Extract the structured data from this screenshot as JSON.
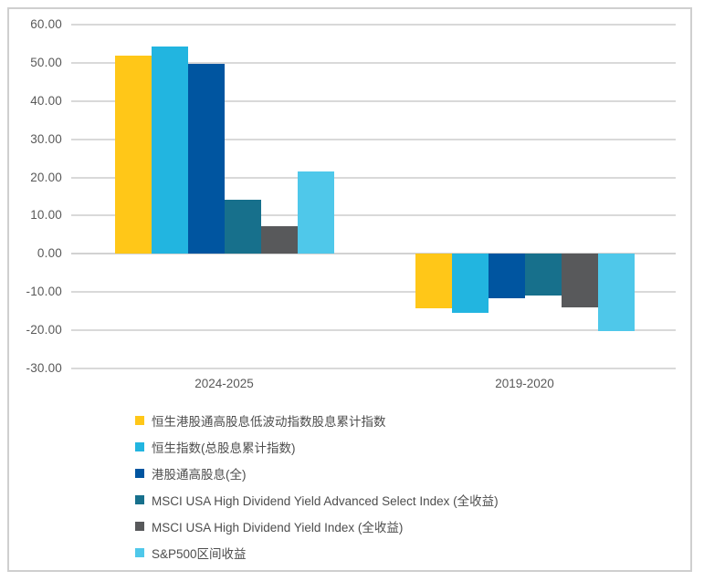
{
  "colors": {
    "grid": "#d9d9d9",
    "frame_border": "#cfcfcf",
    "axis_text": "#595959",
    "legend_text": "#4d4d4d",
    "background": "#ffffff"
  },
  "chart_data": {
    "type": "bar",
    "categories": [
      "2024-2025",
      "2019-2020"
    ],
    "series": [
      {
        "name": "恒生港股通高股息低波动指数股息累计指数",
        "color": "#FFC718",
        "values": [
          52.0,
          -14.2
        ]
      },
      {
        "name": "恒生指数(总股息累计指数)",
        "color": "#22B5E0",
        "values": [
          54.2,
          -15.5
        ]
      },
      {
        "name": "港股通高股息(全)",
        "color": "#0055A0",
        "values": [
          49.8,
          -11.5
        ]
      },
      {
        "name": "MSCI USA High Dividend Yield Advanced Select Index (全收益)",
        "color": "#17708C",
        "values": [
          14.1,
          -10.8
        ]
      },
      {
        "name": "MSCI USA High Dividend Yield Index (全收益)",
        "color": "#58595B",
        "values": [
          7.2,
          -14.0
        ]
      },
      {
        "name": "S&P500区间收益",
        "color": "#4FC8EA",
        "values": [
          21.5,
          -20.1
        ]
      }
    ],
    "title": "",
    "xlabel": "",
    "ylabel": "",
    "ylim": [
      -30,
      60
    ],
    "ytick_step": 10,
    "ytick_labels": [
      "60.00",
      "50.00",
      "40.00",
      "30.00",
      "20.00",
      "10.00",
      "0.00",
      "-10.00",
      "-20.00",
      "-30.00"
    ],
    "ytick_values": [
      60,
      50,
      40,
      30,
      20,
      10,
      0,
      -10,
      -20,
      -30
    ],
    "grid": true,
    "legend_position": "bottom-left"
  }
}
